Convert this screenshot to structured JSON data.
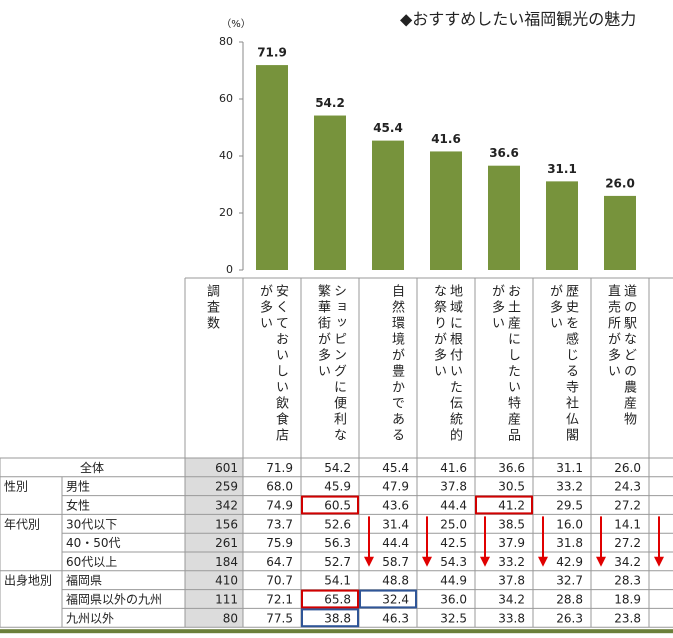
{
  "chart_data": {
    "type": "bar",
    "title": "◆おすすめしたい福岡観光の魅力",
    "y_unit": "（%）",
    "categories": [
      [
        "安くておいしい飲食店",
        "が多い"
      ],
      [
        "ショッピングに便利な",
        "繁華街が多い"
      ],
      [
        "自然環境が豊かである"
      ],
      [
        "地域に根付いた伝統的",
        "な祭りが多い"
      ],
      [
        "お土産にしたい特産品",
        "が多い"
      ],
      [
        "歴史を感じる寺社仏閣",
        "が多い"
      ],
      [
        "道の駅などの農産物",
        "直売所が多い"
      ]
    ],
    "values": [
      71.9,
      54.2,
      45.4,
      41.6,
      36.6,
      31.1,
      26.0
    ],
    "value_labels": [
      "71.9",
      "54.2",
      "45.4",
      "41.6",
      "36.6",
      "31.1",
      "26.0"
    ],
    "color": "#77933c",
    "ylim": [
      0,
      80
    ],
    "yticks": [
      0,
      20,
      40,
      60,
      80
    ]
  },
  "table": {
    "count_header": "調査数",
    "total": {
      "label": "全体",
      "n": "601",
      "values": [
        "71.9",
        "54.2",
        "45.4",
        "41.6",
        "36.6",
        "31.1",
        "26.0"
      ]
    },
    "groups": [
      {
        "label": "性別",
        "rows": [
          {
            "label": "男性",
            "n": "259",
            "values": [
              "68.0",
              "45.9",
              "47.9",
              "37.8",
              "30.5",
              "33.2",
              "24.3"
            ]
          },
          {
            "label": "女性",
            "n": "342",
            "values": [
              "74.9",
              "60.5",
              "43.6",
              "44.4",
              "41.2",
              "29.5",
              "27.2"
            ]
          }
        ]
      },
      {
        "label": "年代別",
        "rows": [
          {
            "label": "30代以下",
            "n": "156",
            "values": [
              "73.7",
              "52.6",
              "31.4",
              "25.0",
              "38.5",
              "16.0",
              "14.1"
            ]
          },
          {
            "label": "40・50代",
            "n": "261",
            "values": [
              "75.9",
              "56.3",
              "44.4",
              "42.5",
              "37.9",
              "31.8",
              "27.2"
            ]
          },
          {
            "label": "60代以上",
            "n": "184",
            "values": [
              "64.7",
              "52.7",
              "58.7",
              "54.3",
              "33.2",
              "42.9",
              "34.2"
            ]
          }
        ]
      },
      {
        "label": "出身地別",
        "rows": [
          {
            "label": "福岡県",
            "n": "410",
            "values": [
              "70.7",
              "54.1",
              "48.8",
              "44.9",
              "37.8",
              "32.7",
              "28.3"
            ]
          },
          {
            "label": "福岡県以外の九州",
            "n": "111",
            "values": [
              "72.1",
              "65.8",
              "32.4",
              "36.0",
              "34.2",
              "28.8",
              "18.9"
            ]
          },
          {
            "label": "九州以外",
            "n": "80",
            "values": [
              "77.5",
              "38.8",
              "46.3",
              "32.5",
              "33.8",
              "26.3",
              "23.8"
            ]
          }
        ]
      }
    ]
  }
}
